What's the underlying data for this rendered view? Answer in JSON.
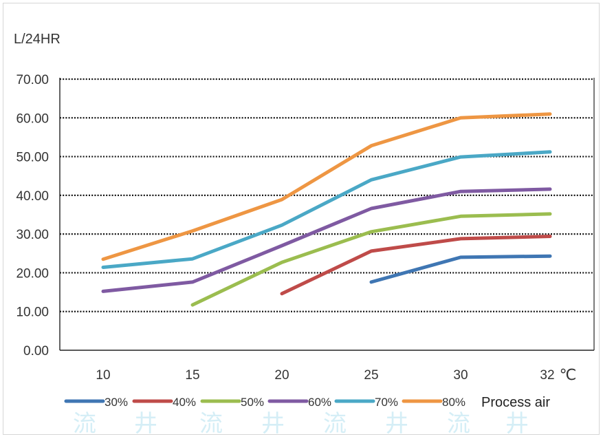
{
  "chart_data": {
    "type": "line",
    "ylabel": "L/24HR",
    "xlabel": "",
    "x_unit": "℃",
    "title": "",
    "categories": [
      "10",
      "15",
      "20",
      "25",
      "30",
      "32"
    ],
    "ylim": [
      0,
      70
    ],
    "yticks": [
      "0.00",
      "10.00",
      "20.00",
      "30.00",
      "40.00",
      "50.00",
      "60.00",
      "70.00"
    ],
    "grid": "horizontal dotted",
    "legend_position": "bottom",
    "legend_title": "Process air",
    "series": [
      {
        "name": "30%",
        "color": "#3f76b3",
        "values": [
          null,
          null,
          null,
          17.6,
          24.0,
          24.3
        ]
      },
      {
        "name": "40%",
        "color": "#bf4b49",
        "values": [
          null,
          null,
          14.6,
          25.6,
          28.8,
          29.4
        ]
      },
      {
        "name": "50%",
        "color": "#9bbd4f",
        "values": [
          null,
          11.7,
          22.7,
          30.6,
          34.6,
          35.2
        ]
      },
      {
        "name": "60%",
        "color": "#7f5aa2",
        "values": [
          15.2,
          17.6,
          27.0,
          36.6,
          41.0,
          41.6
        ]
      },
      {
        "name": "70%",
        "color": "#4aa8c6",
        "values": [
          21.4,
          23.6,
          32.3,
          44.0,
          49.9,
          51.2
        ]
      },
      {
        "name": "80%",
        "color": "#ee9643",
        "values": [
          23.5,
          30.8,
          38.9,
          52.8,
          60.0,
          61.0
        ]
      }
    ],
    "watermark": [
      "流",
      "井",
      "流",
      "井",
      "流",
      "井",
      "流",
      "井"
    ]
  }
}
